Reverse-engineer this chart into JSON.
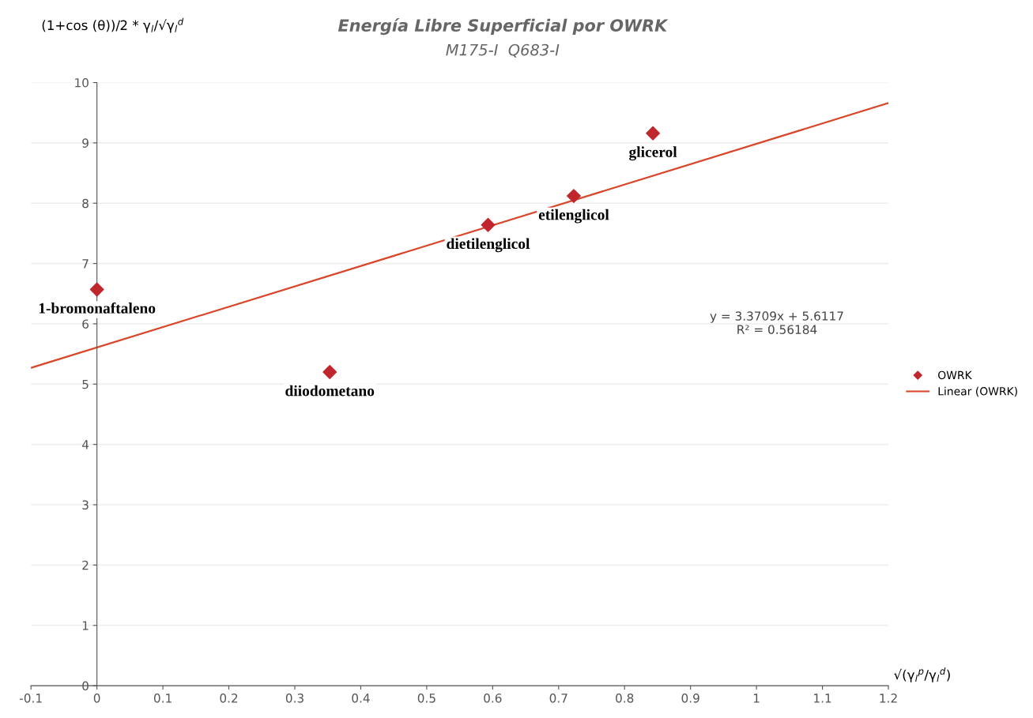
{
  "chart_data": {
    "type": "scatter",
    "title": "Energía Libre Superficial por OWRK",
    "subtitle": "M175-I  Q683-I",
    "ylabel": "(1+cos (θ))/2 * γ$_{l}$/√γ$_{l}$$^{d}$",
    "xlabel": "√(γ$_{l}$$^{p}$/γ$_{l}$$^{d}$)",
    "series": [
      {
        "name": "OWRK",
        "color": "#c0272d",
        "x": [
          0,
          0.353,
          0.593,
          0.723,
          0.843
        ],
        "values": [
          6.57,
          5.2,
          7.64,
          8.12,
          9.16
        ],
        "marker": "diamond"
      },
      {
        "name": "Linear (OWRK)",
        "type": "line",
        "color": "#d9472b",
        "x": [
          -0.1,
          1.2
        ],
        "values": [
          5.27,
          9.66
        ],
        "line_style": "solid"
      }
    ],
    "annotations": [
      {
        "text": "1-bromonaftaleno",
        "x": 0,
        "y": 6.57
      },
      {
        "text": "diiodometano",
        "x": 0.353,
        "y": 5.2
      },
      {
        "text": "dietilenglicol",
        "x": 0.593,
        "y": 7.64
      },
      {
        "text": "etilenglicol",
        "x": 0.723,
        "y": 8.12
      },
      {
        "text": "glicerol",
        "x": 0.843,
        "y": 9.16
      },
      "y = 3.3709x + 5.6117\nR² = 0.56184"
    ],
    "xlim": [
      -0.1,
      1.2
    ],
    "xticks": [
      -0.1,
      0,
      0.1,
      0.2,
      0.3,
      0.4,
      0.5,
      0.6,
      0.7,
      0.8,
      0.9,
      1,
      1.1,
      1.2
    ],
    "ylim": [
      0,
      10
    ],
    "yticks": [
      0,
      1,
      2,
      3,
      4,
      5,
      6,
      7,
      8,
      9,
      10
    ],
    "grid": "y",
    "legend": "right"
  }
}
